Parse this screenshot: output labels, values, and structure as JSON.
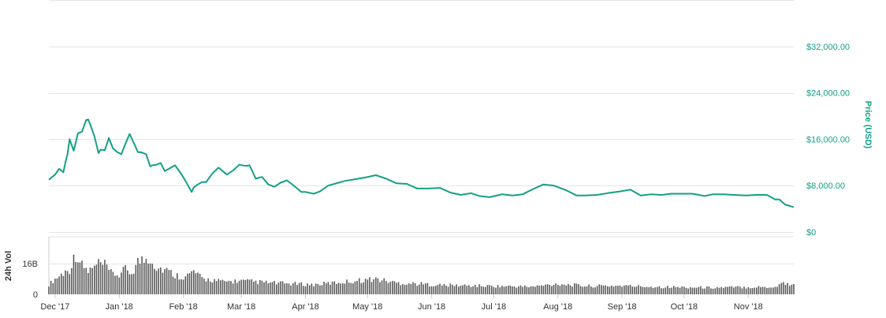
{
  "chart_data": [
    {
      "type": "line",
      "ylabel": "Price (USD)",
      "ylim": [
        0,
        40000
      ],
      "y_ticks": [
        0,
        8000,
        16000,
        24000,
        32000
      ],
      "y_tick_labels": [
        "$0",
        "$8,000.00",
        "$16,000.00",
        "$24,000.00",
        "$32,000.00"
      ],
      "xlim": [
        "2017-11-28",
        "2018-11-23"
      ],
      "x_ticks": [
        "2017-12-01",
        "2018-01-01",
        "2018-02-01",
        "2018-03-01",
        "2018-04-01",
        "2018-05-01",
        "2018-06-01",
        "2018-07-01",
        "2018-08-01",
        "2018-09-01",
        "2018-10-01",
        "2018-11-01"
      ],
      "x_tick_labels": [
        "Dec '17",
        "Jan '18",
        "Feb '18",
        "Mar '18",
        "Apr '18",
        "May '18",
        "Jun '18",
        "Jul '18",
        "Aug '18",
        "Sep '18",
        "Oct '18",
        "Nov '18"
      ],
      "grid": true,
      "color": "#14a085",
      "series": [
        {
          "x": [
            "2017-11-28",
            "2017-12-01",
            "2017-12-03",
            "2017-12-05",
            "2017-12-06",
            "2017-12-07",
            "2017-12-08",
            "2017-12-10",
            "2017-12-12",
            "2017-12-14",
            "2017-12-16",
            "2017-12-17",
            "2017-12-18",
            "2017-12-20",
            "2017-12-22",
            "2017-12-23",
            "2017-12-25",
            "2017-12-27",
            "2017-12-29",
            "2017-12-31",
            "2018-01-02",
            "2018-01-04",
            "2018-01-06",
            "2018-01-08",
            "2018-01-10",
            "2018-01-12",
            "2018-01-14",
            "2018-01-16",
            "2018-01-17",
            "2018-01-19",
            "2018-01-21",
            "2018-01-23",
            "2018-01-25",
            "2018-01-28",
            "2018-01-31",
            "2018-02-02",
            "2018-02-05",
            "2018-02-06",
            "2018-02-08",
            "2018-02-10",
            "2018-02-12",
            "2018-02-15",
            "2018-02-18",
            "2018-02-20",
            "2018-02-22",
            "2018-02-25",
            "2018-02-28",
            "2018-03-03",
            "2018-03-05",
            "2018-03-08",
            "2018-03-11",
            "2018-03-14",
            "2018-03-17",
            "2018-03-20",
            "2018-03-23",
            "2018-03-26",
            "2018-03-30",
            "2018-04-01",
            "2018-04-05",
            "2018-04-08",
            "2018-04-12",
            "2018-04-15",
            "2018-04-20",
            "2018-04-25",
            "2018-04-30",
            "2018-05-05",
            "2018-05-10",
            "2018-05-15",
            "2018-05-20",
            "2018-05-25",
            "2018-05-30",
            "2018-06-05",
            "2018-06-10",
            "2018-06-15",
            "2018-06-20",
            "2018-06-24",
            "2018-06-29",
            "2018-07-05",
            "2018-07-10",
            "2018-07-15",
            "2018-07-20",
            "2018-07-25",
            "2018-07-30",
            "2018-08-05",
            "2018-08-10",
            "2018-08-14",
            "2018-08-20",
            "2018-08-25",
            "2018-08-31",
            "2018-09-05",
            "2018-09-10",
            "2018-09-15",
            "2018-09-20",
            "2018-09-25",
            "2018-09-30",
            "2018-10-05",
            "2018-10-11",
            "2018-10-15",
            "2018-10-20",
            "2018-10-25",
            "2018-10-31",
            "2018-11-05",
            "2018-11-10",
            "2018-11-14",
            "2018-11-16",
            "2018-11-19",
            "2018-11-21",
            "2018-11-23"
          ],
          "values": [
            9000,
            9900,
            10900,
            10300,
            12000,
            13400,
            16000,
            14000,
            17000,
            17300,
            19300,
            19400,
            18500,
            16500,
            13600,
            14200,
            14100,
            16200,
            14400,
            13800,
            13400,
            15200,
            16900,
            15400,
            13800,
            13700,
            13400,
            11300,
            11500,
            11600,
            11900,
            10500,
            10900,
            11500,
            10000,
            8800,
            6900,
            7700,
            8200,
            8600,
            8600,
            10100,
            11100,
            10500,
            9900,
            10600,
            11600,
            11400,
            11500,
            9200,
            9500,
            8200,
            7800,
            8500,
            8900,
            8100,
            6900,
            6900,
            6600,
            7000,
            8000,
            8300,
            8800,
            9100,
            9400,
            9800,
            9200,
            8400,
            8300,
            7500,
            7500,
            7600,
            6800,
            6400,
            6700,
            6200,
            6000,
            6500,
            6300,
            6500,
            7400,
            8200,
            8000,
            7200,
            6300,
            6300,
            6400,
            6700,
            7000,
            7300,
            6300,
            6500,
            6400,
            6600,
            6600,
            6600,
            6200,
            6500,
            6500,
            6400,
            6300,
            6400,
            6400,
            5600,
            5600,
            4700,
            4500,
            4300
          ]
        }
      ]
    },
    {
      "type": "bar",
      "ylabel": "24h Vol",
      "ylim": [
        0,
        30000000000
      ],
      "y_ticks": [
        0,
        16000000000
      ],
      "y_tick_labels": [
        "0",
        "16B"
      ],
      "color": "#5a5a5a",
      "series": [
        {
          "x": [
            "2017-11-28",
            "2017-12-01",
            "2017-12-05",
            "2017-12-08",
            "2017-12-11",
            "2017-12-14",
            "2017-12-17",
            "2017-12-20",
            "2017-12-22",
            "2017-12-25",
            "2017-12-28",
            "2018-01-01",
            "2018-01-04",
            "2018-01-07",
            "2018-01-10",
            "2018-01-13",
            "2018-01-16",
            "2018-01-19",
            "2018-01-23",
            "2018-01-28",
            "2018-02-02",
            "2018-02-06",
            "2018-02-10",
            "2018-02-15",
            "2018-02-20",
            "2018-02-28",
            "2018-03-08",
            "2018-03-15",
            "2018-03-25",
            "2018-04-05",
            "2018-04-15",
            "2018-04-25",
            "2018-05-05",
            "2018-05-15",
            "2018-05-25",
            "2018-06-05",
            "2018-06-20",
            "2018-07-05",
            "2018-07-20",
            "2018-08-01",
            "2018-08-15",
            "2018-09-01",
            "2018-09-15",
            "2018-10-01",
            "2018-10-15",
            "2018-11-01",
            "2018-11-14",
            "2018-11-18",
            "2018-11-21",
            "2018-11-23"
          ],
          "values": [
            5000000000,
            8000000000,
            11000000000,
            13000000000,
            21000000000,
            15000000000,
            12000000000,
            14000000000,
            16000000000,
            15000000000,
            11000000000,
            10000000000,
            13000000000,
            11000000000,
            17000000000,
            18000000000,
            19000000000,
            14000000000,
            13000000000,
            10000000000,
            9000000000,
            12000000000,
            8000000000,
            7500000000,
            6500000000,
            7000000000,
            6500000000,
            6000000000,
            5500000000,
            5000000000,
            6000000000,
            7000000000,
            8000000000,
            6000000000,
            5500000000,
            4800000000,
            4500000000,
            4200000000,
            4000000000,
            5500000000,
            4300000000,
            4500000000,
            4000000000,
            3700000000,
            3500000000,
            3800000000,
            3800000000,
            6200000000,
            5000000000,
            5600000000
          ]
        }
      ]
    }
  ]
}
